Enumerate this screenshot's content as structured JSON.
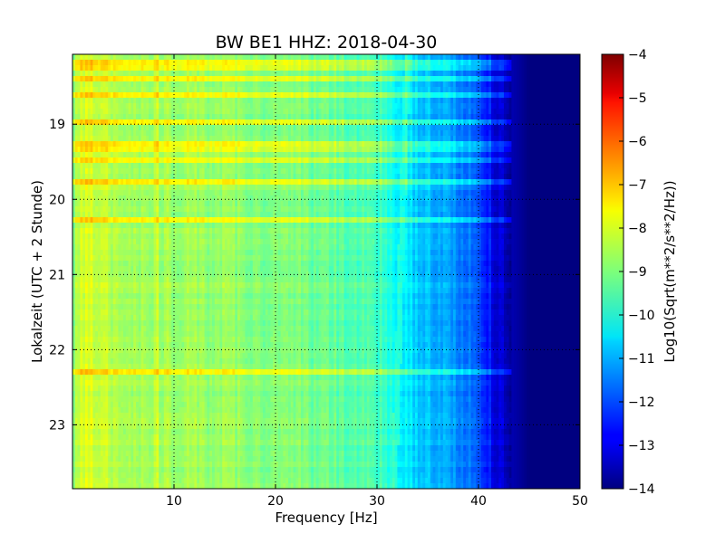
{
  "chart_data": {
    "type": "heatmap",
    "title": "BW BE1 HHZ: 2018-04-30",
    "xlabel": "Frequency [Hz]",
    "ylabel": "Lokalzeit (UTC + 2 Stunde)",
    "xlim": [
      0,
      50
    ],
    "ylim": [
      18.07,
      23.85
    ],
    "y_inverted": true,
    "x_ticks": [
      10,
      20,
      30,
      40,
      50
    ],
    "y_ticks": [
      19,
      20,
      21,
      22,
      23
    ],
    "grid": true,
    "colorbar": {
      "label": "Log10(Sqrt(m**2/s**2/Hz))",
      "range": [
        -14,
        -4
      ],
      "ticks": [
        -4,
        -5,
        -6,
        -7,
        -8,
        -9,
        -10,
        -11,
        -12,
        -13,
        -14
      ],
      "colormap": "jet"
    },
    "spectral_profile": {
      "frequency_hz": [
        0,
        1,
        3,
        5,
        8,
        12,
        16,
        20,
        25,
        30,
        33,
        36,
        38,
        40,
        42,
        44,
        45,
        50
      ],
      "log10_amplitude": [
        -8.9,
        -8.1,
        -8.3,
        -8.6,
        -8.6,
        -8.7,
        -8.8,
        -9.0,
        -9.2,
        -9.6,
        -10.5,
        -11.0,
        -11.4,
        -11.9,
        -13.2,
        -13.7,
        -14.0,
        -14.0
      ]
    },
    "highlight_bands_hours": [
      18.16,
      18.25,
      18.42,
      18.6,
      18.95,
      19.3,
      19.5,
      19.76,
      20.25,
      22.3
    ],
    "drift_line_hz": [
      33.0,
      31.7
    ]
  }
}
